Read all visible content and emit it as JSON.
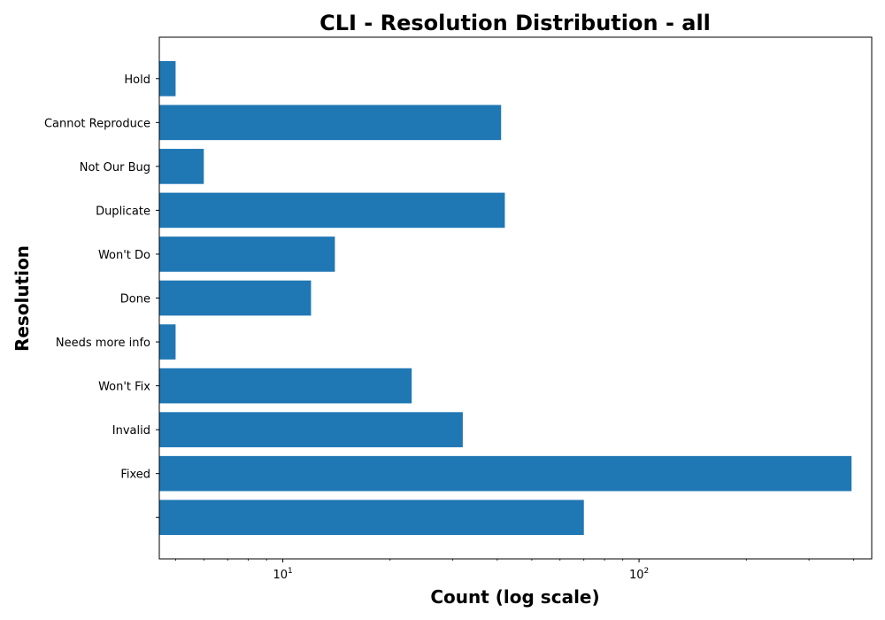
{
  "chart_data": {
    "type": "bar",
    "orientation": "horizontal",
    "title": "CLI - Resolution Distribution - all",
    "xlabel": "Count (log scale)",
    "ylabel": "Resolution",
    "x_scale": "log",
    "xlim": [
      4.5,
      450
    ],
    "x_major_ticks": [
      {
        "value": 10,
        "base": "10",
        "exp": "1"
      },
      {
        "value": 100,
        "base": "10",
        "exp": "2"
      }
    ],
    "grid": false,
    "bar_color": "#1f77b4",
    "categories": [
      "",
      "Fixed",
      "Invalid",
      "Won't Fix",
      "Needs more info",
      "Done",
      "Won't Do",
      "Duplicate",
      "Not Our Bug",
      "Cannot Reproduce",
      "Hold"
    ],
    "values": [
      70,
      395,
      32,
      23,
      5,
      12,
      14,
      42,
      6,
      41,
      5
    ]
  }
}
